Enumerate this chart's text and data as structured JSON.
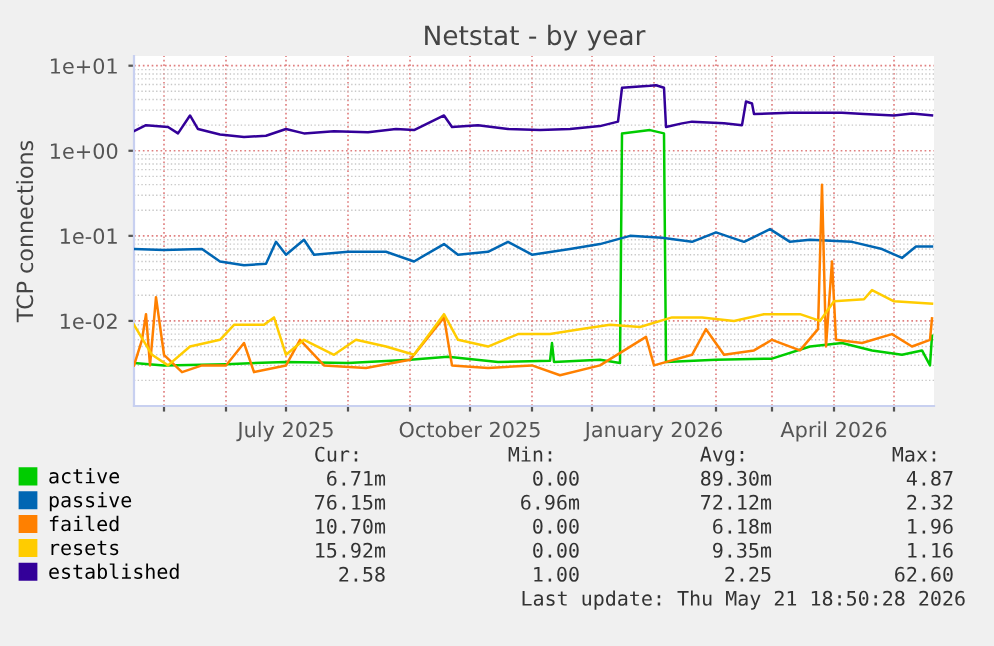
{
  "chart_data": {
    "type": "line",
    "title": "Netstat - by year",
    "ylabel": "TCP connections",
    "log": true,
    "grid": true,
    "legend": "bottom",
    "marker": "none",
    "line_style": "solid",
    "xlim": [
      "2025-04-16",
      "2026-05-21"
    ],
    "xticks": [
      {
        "value": "2025-05-01",
        "label": null
      },
      {
        "value": "2025-06-01",
        "label": null
      },
      {
        "value": "2025-07-01",
        "label": "July 2025"
      },
      {
        "value": "2025-08-01",
        "label": null
      },
      {
        "value": "2025-09-01",
        "label": null
      },
      {
        "value": "2025-10-01",
        "label": "October 2025"
      },
      {
        "value": "2025-11-01",
        "label": null
      },
      {
        "value": "2025-12-01",
        "label": null
      },
      {
        "value": "2026-01-01",
        "label": "January 2026"
      },
      {
        "value": "2026-02-01",
        "label": null
      },
      {
        "value": "2026-03-01",
        "label": null
      },
      {
        "value": "2026-04-01",
        "label": "April 2026"
      },
      {
        "value": "2026-05-01",
        "label": null
      }
    ],
    "ylim": [
      0.001,
      13
    ],
    "yticks": [
      {
        "value": 0.01,
        "label": "1e-02"
      },
      {
        "value": 0.1,
        "label": "1e-01"
      },
      {
        "value": 1,
        "label": "1e+00"
      },
      {
        "value": 10,
        "label": "1e+01"
      }
    ],
    "annotations": [
      "Cur:",
      "Min:",
      "Avg:",
      "Max:",
      "6.71m",
      "0.00",
      "89.30m",
      "4.87",
      "76.15m",
      "6.96m",
      "72.12m",
      "2.32",
      "10.70m",
      "0.00",
      "6.18m",
      "1.96",
      "15.92m",
      "0.00",
      "9.35m",
      "1.16",
      "2.58",
      "1.00",
      "2.25",
      "62.60",
      "Last update: Thu May 21 18:50:28 2026"
    ],
    "series": [
      {
        "name": "active",
        "color": "#00cc00",
        "x": [
          "2025-04-16",
          "2025-05-01",
          "2025-06-01",
          "2025-07-01",
          "2025-08-01",
          "2025-09-01",
          "2025-09-20",
          "2025-10-15",
          "2025-11-10",
          "2025-11-11",
          "2025-11-12",
          "2025-12-05",
          "2025-12-15",
          "2025-12-16",
          "2025-12-30",
          "2026-01-06",
          "2026-01-07",
          "2026-02-01",
          "2026-03-01",
          "2026-03-20",
          "2026-04-05",
          "2026-04-20",
          "2026-05-05",
          "2026-05-15",
          "2026-05-19",
          "2026-05-20"
        ],
        "values": [
          0.0032,
          0.003,
          0.0031,
          0.0033,
          0.0032,
          0.0035,
          0.0038,
          0.0033,
          0.0034,
          0.0055,
          0.0033,
          0.0035,
          0.0032,
          1.6,
          1.75,
          1.6,
          0.0033,
          0.0035,
          0.0036,
          0.005,
          0.0055,
          0.0045,
          0.004,
          0.0045,
          0.003,
          0.0067
        ]
      },
      {
        "name": "passive",
        "color": "#0066b3",
        "x": [
          "2025-04-16",
          "2025-05-01",
          "2025-05-20",
          "2025-05-29",
          "2025-06-10",
          "2025-06-21",
          "2025-06-26",
          "2025-07-01",
          "2025-07-10",
          "2025-07-15",
          "2025-08-01",
          "2025-08-20",
          "2025-09-03",
          "2025-09-18",
          "2025-09-25",
          "2025-10-10",
          "2025-10-20",
          "2025-11-01",
          "2025-11-20",
          "2025-12-05",
          "2025-12-20",
          "2026-01-05",
          "2026-01-20",
          "2026-02-01",
          "2026-02-15",
          "2026-02-28",
          "2026-03-10",
          "2026-03-20",
          "2026-04-10",
          "2026-04-25",
          "2026-05-05",
          "2026-05-12",
          "2026-05-20"
        ],
        "values": [
          0.07,
          0.068,
          0.07,
          0.05,
          0.045,
          0.047,
          0.085,
          0.06,
          0.09,
          0.06,
          0.065,
          0.065,
          0.05,
          0.08,
          0.06,
          0.065,
          0.085,
          0.06,
          0.07,
          0.08,
          0.1,
          0.095,
          0.085,
          0.11,
          0.085,
          0.12,
          0.085,
          0.09,
          0.085,
          0.07,
          0.055,
          0.075,
          0.075
        ]
      },
      {
        "name": "failed",
        "color": "#ff8000",
        "x": [
          "2025-04-16",
          "2025-04-20",
          "2025-04-22",
          "2025-04-24",
          "2025-04-27",
          "2025-05-01",
          "2025-05-10",
          "2025-05-20",
          "2025-06-01",
          "2025-06-10",
          "2025-06-15",
          "2025-07-01",
          "2025-07-08",
          "2025-07-20",
          "2025-08-10",
          "2025-09-01",
          "2025-09-18",
          "2025-09-22",
          "2025-10-10",
          "2025-11-01",
          "2025-11-15",
          "2025-12-05",
          "2025-12-28",
          "2026-01-01",
          "2026-01-20",
          "2026-01-27",
          "2026-02-05",
          "2026-02-20",
          "2026-03-01",
          "2026-03-15",
          "2026-03-24",
          "2026-03-26",
          "2026-03-28",
          "2026-03-31",
          "2026-04-02",
          "2026-04-15",
          "2026-04-30",
          "2026-05-10",
          "2026-05-19",
          "2026-05-20"
        ],
        "values": [
          0.003,
          0.006,
          0.012,
          0.003,
          0.019,
          0.004,
          0.0025,
          0.003,
          0.003,
          0.0055,
          0.0025,
          0.003,
          0.006,
          0.003,
          0.0028,
          0.0035,
          0.011,
          0.003,
          0.0028,
          0.003,
          0.0023,
          0.003,
          0.0065,
          0.003,
          0.004,
          0.008,
          0.004,
          0.0045,
          0.006,
          0.0045,
          0.008,
          0.4,
          0.005,
          0.05,
          0.006,
          0.0055,
          0.007,
          0.005,
          0.006,
          0.0107
        ]
      },
      {
        "name": "resets",
        "color": "#ffcc00",
        "x": [
          "2025-04-16",
          "2025-04-25",
          "2025-05-03",
          "2025-05-14",
          "2025-05-29",
          "2025-06-05",
          "2025-06-20",
          "2025-06-25",
          "2025-07-01",
          "2025-07-10",
          "2025-07-25",
          "2025-08-05",
          "2025-08-20",
          "2025-09-03",
          "2025-09-18",
          "2025-09-25",
          "2025-10-10",
          "2025-10-25",
          "2025-11-10",
          "2025-11-25",
          "2025-12-10",
          "2025-12-25",
          "2026-01-10",
          "2026-01-25",
          "2026-02-10",
          "2026-02-25",
          "2026-03-15",
          "2026-03-25",
          "2026-04-01",
          "2026-04-16",
          "2026-04-20",
          "2026-05-01",
          "2026-05-20"
        ],
        "values": [
          0.009,
          0.004,
          0.003,
          0.005,
          0.006,
          0.009,
          0.009,
          0.011,
          0.004,
          0.006,
          0.004,
          0.006,
          0.005,
          0.004,
          0.012,
          0.006,
          0.005,
          0.007,
          0.007,
          0.008,
          0.009,
          0.0085,
          0.011,
          0.011,
          0.01,
          0.012,
          0.012,
          0.01,
          0.017,
          0.018,
          0.023,
          0.017,
          0.016
        ]
      },
      {
        "name": "established",
        "color": "#330099",
        "x": [
          "2025-04-16",
          "2025-04-22",
          "2025-05-03",
          "2025-05-08",
          "2025-05-14",
          "2025-05-18",
          "2025-05-29",
          "2025-06-10",
          "2025-06-21",
          "2025-07-01",
          "2025-07-10",
          "2025-07-25",
          "2025-08-11",
          "2025-08-25",
          "2025-09-03",
          "2025-09-18",
          "2025-09-22",
          "2025-10-05",
          "2025-10-20",
          "2025-11-05",
          "2025-11-20",
          "2025-12-05",
          "2025-12-14",
          "2025-12-16",
          "2025-12-30",
          "2026-01-02",
          "2026-01-06",
          "2026-01-07",
          "2026-01-15",
          "2026-01-20",
          "2026-02-05",
          "2026-02-14",
          "2026-02-16",
          "2026-02-19",
          "2026-02-20",
          "2026-03-10",
          "2026-04-05",
          "2026-04-16",
          "2026-05-01",
          "2026-05-10",
          "2026-05-20"
        ],
        "values": [
          1.7,
          2.0,
          1.9,
          1.6,
          2.6,
          1.8,
          1.55,
          1.45,
          1.5,
          1.8,
          1.6,
          1.7,
          1.65,
          1.8,
          1.75,
          2.6,
          1.9,
          2.0,
          1.8,
          1.75,
          1.8,
          1.95,
          2.2,
          5.5,
          5.8,
          5.9,
          5.5,
          1.9,
          2.1,
          2.2,
          2.1,
          2.0,
          3.8,
          3.6,
          2.7,
          2.8,
          2.8,
          2.7,
          2.6,
          2.75,
          2.6
        ]
      }
    ]
  }
}
